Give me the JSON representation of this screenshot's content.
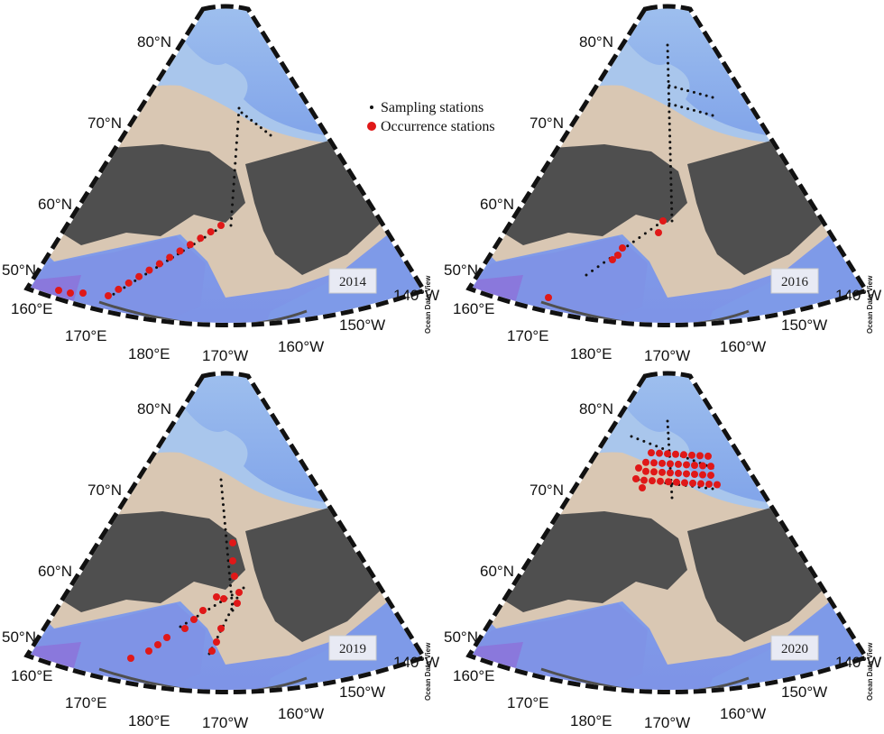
{
  "legend": {
    "sampling": "Sampling stations",
    "occurrence": "Occurrence stations"
  },
  "panels": [
    {
      "year": "2014",
      "lat_labels": [
        "80°N",
        "70°N",
        "60°N",
        "50°N"
      ],
      "lon_labels": [
        "160°E",
        "170°E",
        "180°E",
        "170°W",
        "160°W",
        "150°W",
        "140°W"
      ],
      "credit": "Ocean Data View"
    },
    {
      "year": "2016",
      "lat_labels": [
        "80°N",
        "70°N",
        "60°N",
        "50°N"
      ],
      "lon_labels": [
        "160°E",
        "170°E",
        "180°E",
        "170°W",
        "160°W",
        "150°W",
        "140°W"
      ],
      "credit": "Ocean Data View"
    },
    {
      "year": "2019",
      "lat_labels": [
        "80°N",
        "70°N",
        "60°N",
        "50°N"
      ],
      "lon_labels": [
        "160°E",
        "170°E",
        "180°E",
        "170°W",
        "160°W",
        "150°W",
        "140°W"
      ],
      "credit": "Ocean Data View"
    },
    {
      "year": "2020",
      "lat_labels": [
        "80°N",
        "70°N",
        "60°N",
        "50°N"
      ],
      "lon_labels": [
        "160°E",
        "170°E",
        "180°E",
        "170°W",
        "160°W",
        "150°W",
        "140°W"
      ],
      "credit": "Ocean Data View"
    }
  ]
}
